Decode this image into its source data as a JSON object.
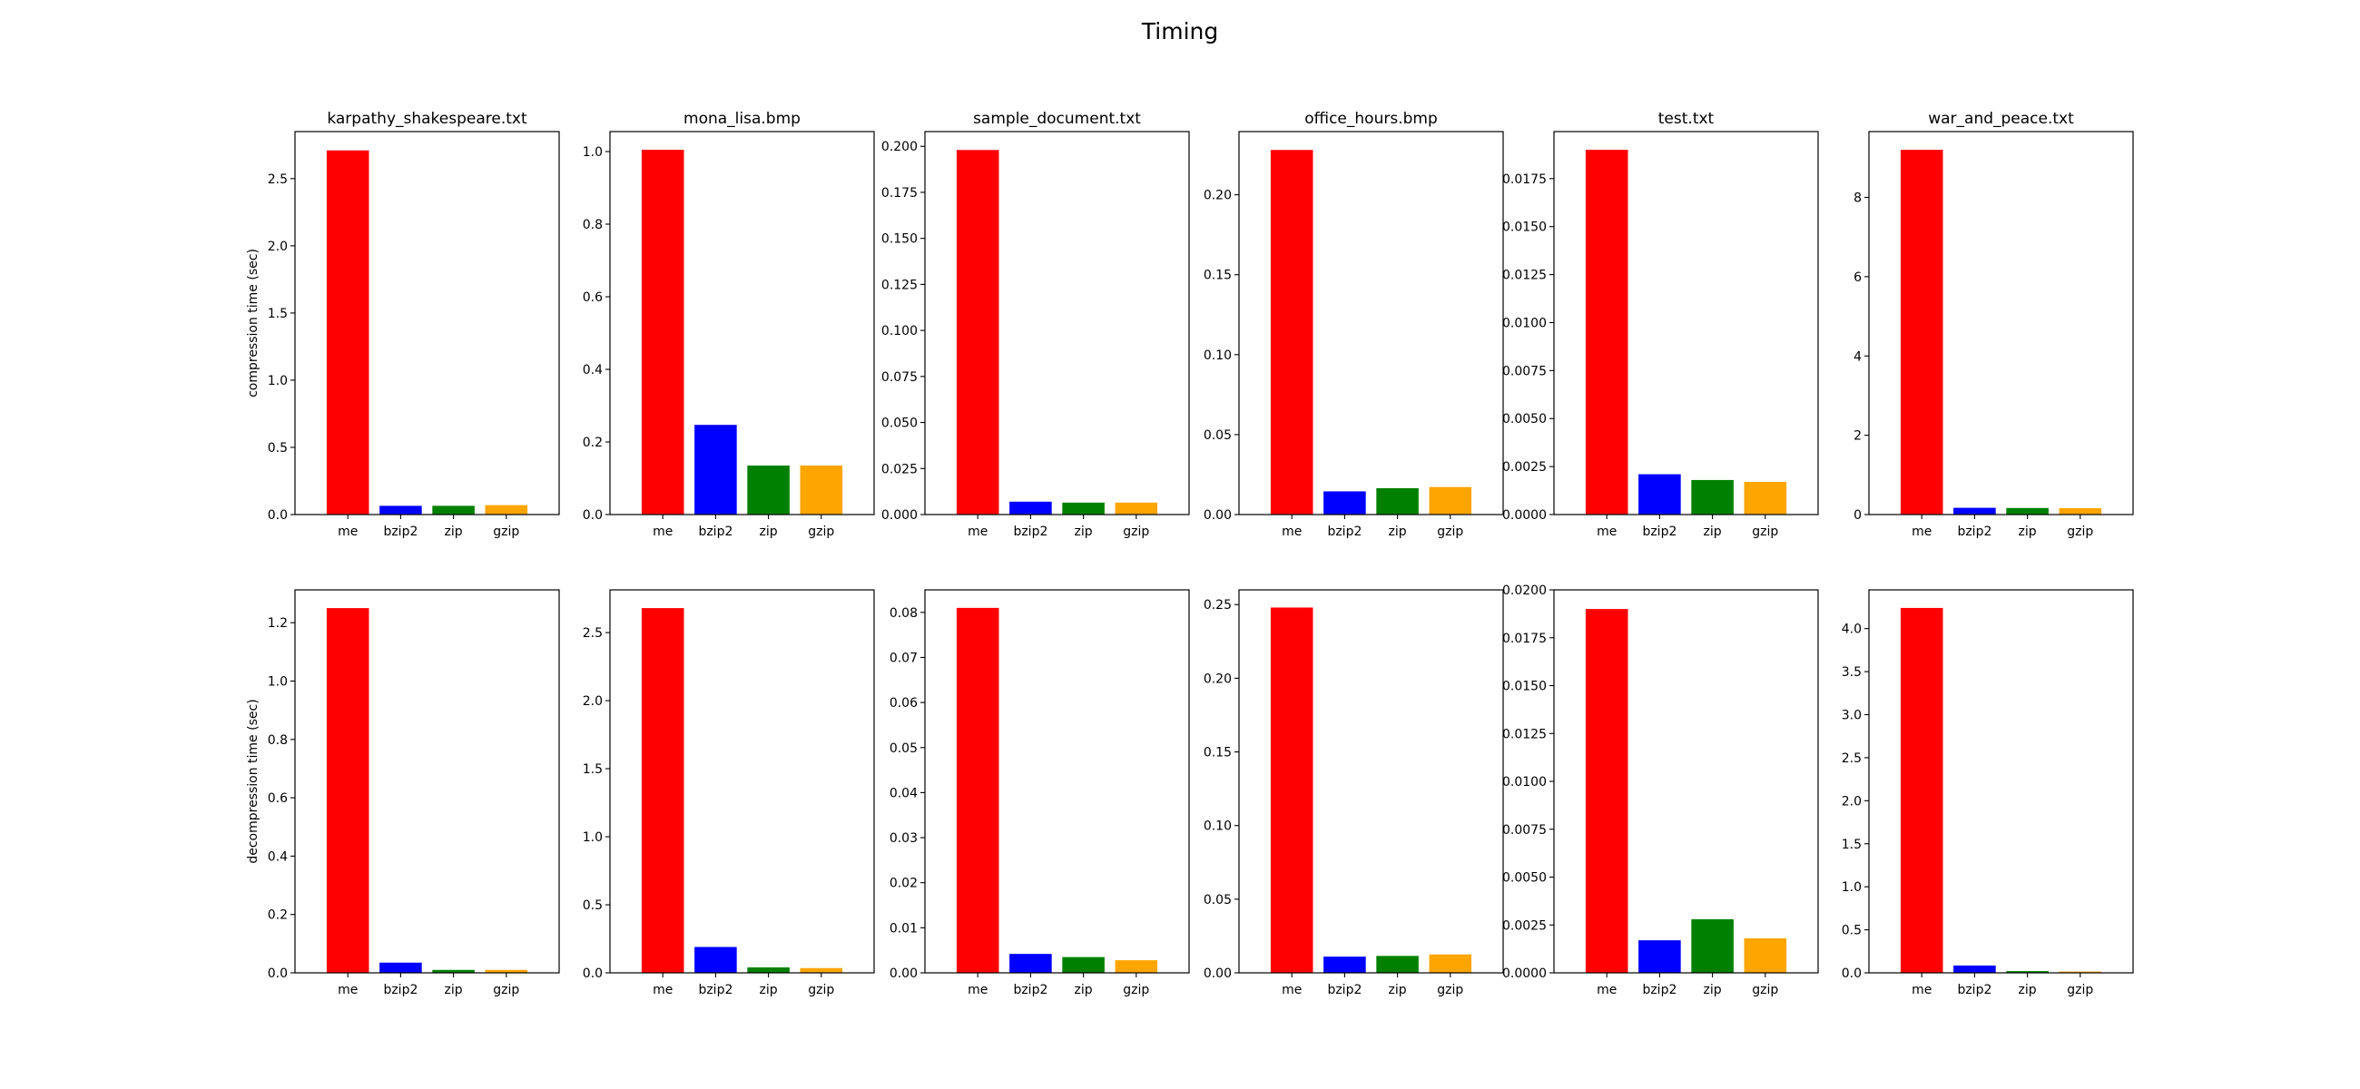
{
  "title": "Timing",
  "colors": {
    "me": "#ff0000",
    "bzip2": "#0000ff",
    "zip": "#008000",
    "gzip": "#ffa500"
  },
  "chart_data": [
    {
      "type": "bar",
      "title": "karpathy_shakespeare.txt",
      "ylabel": "compression time (sec)",
      "categories": [
        "me",
        "bzip2",
        "zip",
        "gzip"
      ],
      "values": [
        2.71,
        0.065,
        0.065,
        0.07
      ],
      "ylim": [
        0,
        2.85
      ],
      "yticks": [
        0.0,
        0.5,
        1.0,
        1.5,
        2.0,
        2.5
      ],
      "ytick_labels": [
        "0.0",
        "0.5",
        "1.0",
        "1.5",
        "2.0",
        "2.5"
      ]
    },
    {
      "type": "bar",
      "title": "mona_lisa.bmp",
      "ylabel": "",
      "categories": [
        "me",
        "bzip2",
        "zip",
        "gzip"
      ],
      "values": [
        1.005,
        0.247,
        0.135,
        0.135
      ],
      "ylim": [
        0,
        1.055
      ],
      "yticks": [
        0.0,
        0.2,
        0.4,
        0.6,
        0.8,
        1.0
      ],
      "ytick_labels": [
        "0.0",
        "0.2",
        "0.4",
        "0.6",
        "0.8",
        "1.0"
      ]
    },
    {
      "type": "bar",
      "title": "sample_document.txt",
      "ylabel": "",
      "categories": [
        "me",
        "bzip2",
        "zip",
        "gzip"
      ],
      "values": [
        0.198,
        0.007,
        0.0065,
        0.0065
      ],
      "ylim": [
        0,
        0.208
      ],
      "yticks": [
        0.0,
        0.025,
        0.05,
        0.075,
        0.1,
        0.125,
        0.15,
        0.175,
        0.2
      ],
      "ytick_labels": [
        "0.000",
        "0.025",
        "0.050",
        "0.075",
        "0.100",
        "0.125",
        "0.150",
        "0.175",
        "0.200"
      ]
    },
    {
      "type": "bar",
      "title": "office_hours.bmp",
      "ylabel": "",
      "categories": [
        "me",
        "bzip2",
        "zip",
        "gzip"
      ],
      "values": [
        0.228,
        0.0145,
        0.0165,
        0.0172
      ],
      "ylim": [
        0,
        0.2395
      ],
      "yticks": [
        0.0,
        0.05,
        0.1,
        0.15,
        0.2
      ],
      "ytick_labels": [
        "0.00",
        "0.05",
        "0.10",
        "0.15",
        "0.20"
      ]
    },
    {
      "type": "bar",
      "title": "test.txt",
      "ylabel": "",
      "categories": [
        "me",
        "bzip2",
        "zip",
        "gzip"
      ],
      "values": [
        0.019,
        0.0021,
        0.0018,
        0.0017
      ],
      "ylim": [
        0,
        0.01995
      ],
      "yticks": [
        0.0,
        0.0025,
        0.005,
        0.0075,
        0.01,
        0.0125,
        0.015,
        0.0175
      ],
      "ytick_labels": [
        "0.0000",
        "0.0025",
        "0.0050",
        "0.0075",
        "0.0100",
        "0.0125",
        "0.0150",
        "0.0175"
      ]
    },
    {
      "type": "bar",
      "title": "war_and_peace.txt",
      "ylabel": "",
      "categories": [
        "me",
        "bzip2",
        "zip",
        "gzip"
      ],
      "values": [
        9.2,
        0.17,
        0.165,
        0.16
      ],
      "ylim": [
        0,
        9.66
      ],
      "yticks": [
        0,
        2,
        4,
        6,
        8
      ],
      "ytick_labels": [
        "0",
        "2",
        "4",
        "6",
        "8"
      ]
    },
    {
      "type": "bar",
      "title": "",
      "ylabel": "decompression time (sec)",
      "categories": [
        "me",
        "bzip2",
        "zip",
        "gzip"
      ],
      "values": [
        1.25,
        0.035,
        0.01,
        0.01
      ],
      "ylim": [
        0,
        1.3125
      ],
      "yticks": [
        0.0,
        0.2,
        0.4,
        0.6,
        0.8,
        1.0,
        1.2
      ],
      "ytick_labels": [
        "0.0",
        "0.2",
        "0.4",
        "0.6",
        "0.8",
        "1.0",
        "1.2"
      ]
    },
    {
      "type": "bar",
      "title": "",
      "ylabel": "",
      "categories": [
        "me",
        "bzip2",
        "zip",
        "gzip"
      ],
      "values": [
        2.68,
        0.19,
        0.04,
        0.035
      ],
      "ylim": [
        0,
        2.814
      ],
      "yticks": [
        0.0,
        0.5,
        1.0,
        1.5,
        2.0,
        2.5
      ],
      "ytick_labels": [
        "0.0",
        "0.5",
        "1.0",
        "1.5",
        "2.0",
        "2.5"
      ]
    },
    {
      "type": "bar",
      "title": "",
      "ylabel": "",
      "categories": [
        "me",
        "bzip2",
        "zip",
        "gzip"
      ],
      "values": [
        0.081,
        0.0042,
        0.0035,
        0.0028
      ],
      "ylim": [
        0,
        0.085
      ],
      "yticks": [
        0.0,
        0.01,
        0.02,
        0.03,
        0.04,
        0.05,
        0.06,
        0.07,
        0.08
      ],
      "ytick_labels": [
        "0.00",
        "0.01",
        "0.02",
        "0.03",
        "0.04",
        "0.05",
        "0.06",
        "0.07",
        "0.08"
      ]
    },
    {
      "type": "bar",
      "title": "",
      "ylabel": "",
      "categories": [
        "me",
        "bzip2",
        "zip",
        "gzip"
      ],
      "values": [
        0.248,
        0.011,
        0.0115,
        0.0125
      ],
      "ylim": [
        0,
        0.26
      ],
      "yticks": [
        0.0,
        0.05,
        0.1,
        0.15,
        0.2,
        0.25
      ],
      "ytick_labels": [
        "0.00",
        "0.05",
        "0.10",
        "0.15",
        "0.20",
        "0.25"
      ]
    },
    {
      "type": "bar",
      "title": "",
      "ylabel": "",
      "categories": [
        "me",
        "bzip2",
        "zip",
        "gzip"
      ],
      "values": [
        0.019,
        0.0017,
        0.0028,
        0.0018
      ],
      "ylim": [
        0,
        0.02
      ],
      "yticks": [
        0.0,
        0.0025,
        0.005,
        0.0075,
        0.01,
        0.0125,
        0.015,
        0.0175,
        0.02
      ],
      "ytick_labels": [
        "0.0000",
        "0.0025",
        "0.0050",
        "0.0075",
        "0.0100",
        "0.0125",
        "0.0150",
        "0.0175",
        "0.0200"
      ]
    },
    {
      "type": "bar",
      "title": "",
      "ylabel": "",
      "categories": [
        "me",
        "bzip2",
        "zip",
        "gzip"
      ],
      "values": [
        4.24,
        0.085,
        0.02,
        0.015
      ],
      "ylim": [
        0,
        4.45
      ],
      "yticks": [
        0.0,
        0.5,
        1.0,
        1.5,
        2.0,
        2.5,
        3.0,
        3.5,
        4.0
      ],
      "ytick_labels": [
        "0.0",
        "0.5",
        "1.0",
        "1.5",
        "2.0",
        "2.5",
        "3.0",
        "3.5",
        "4.0"
      ]
    }
  ]
}
